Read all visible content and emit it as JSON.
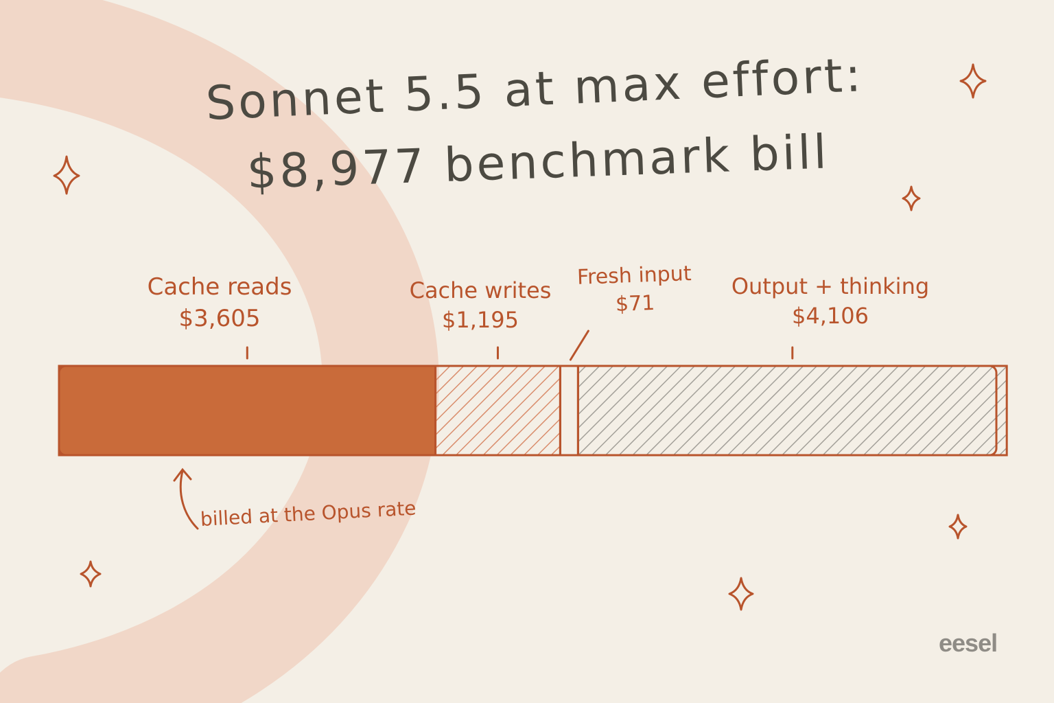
{
  "title": {
    "line1": "Sonnet 5.5 at max effort:",
    "line2": "$8,977 benchmark bill"
  },
  "chart_data": {
    "type": "bar",
    "orientation": "horizontal-stacked",
    "categories": [
      "Cache reads",
      "Cache writes",
      "Fresh input",
      "Output + thinking"
    ],
    "values": [
      3605,
      1195,
      71,
      4106
    ],
    "value_labels": [
      "$3,605",
      "$1,195",
      "$71",
      "$4,106"
    ],
    "total": 8977,
    "annotation": "billed at the Opus rate",
    "colors": {
      "cache_reads": "#c96b3a",
      "cache_writes_hatch": "#d98d6c",
      "output_hatch": "#a3a099",
      "outline": "#b8542c",
      "background": "#f4efe6",
      "arc": "#f1d7c8"
    }
  },
  "brand": "eesel"
}
